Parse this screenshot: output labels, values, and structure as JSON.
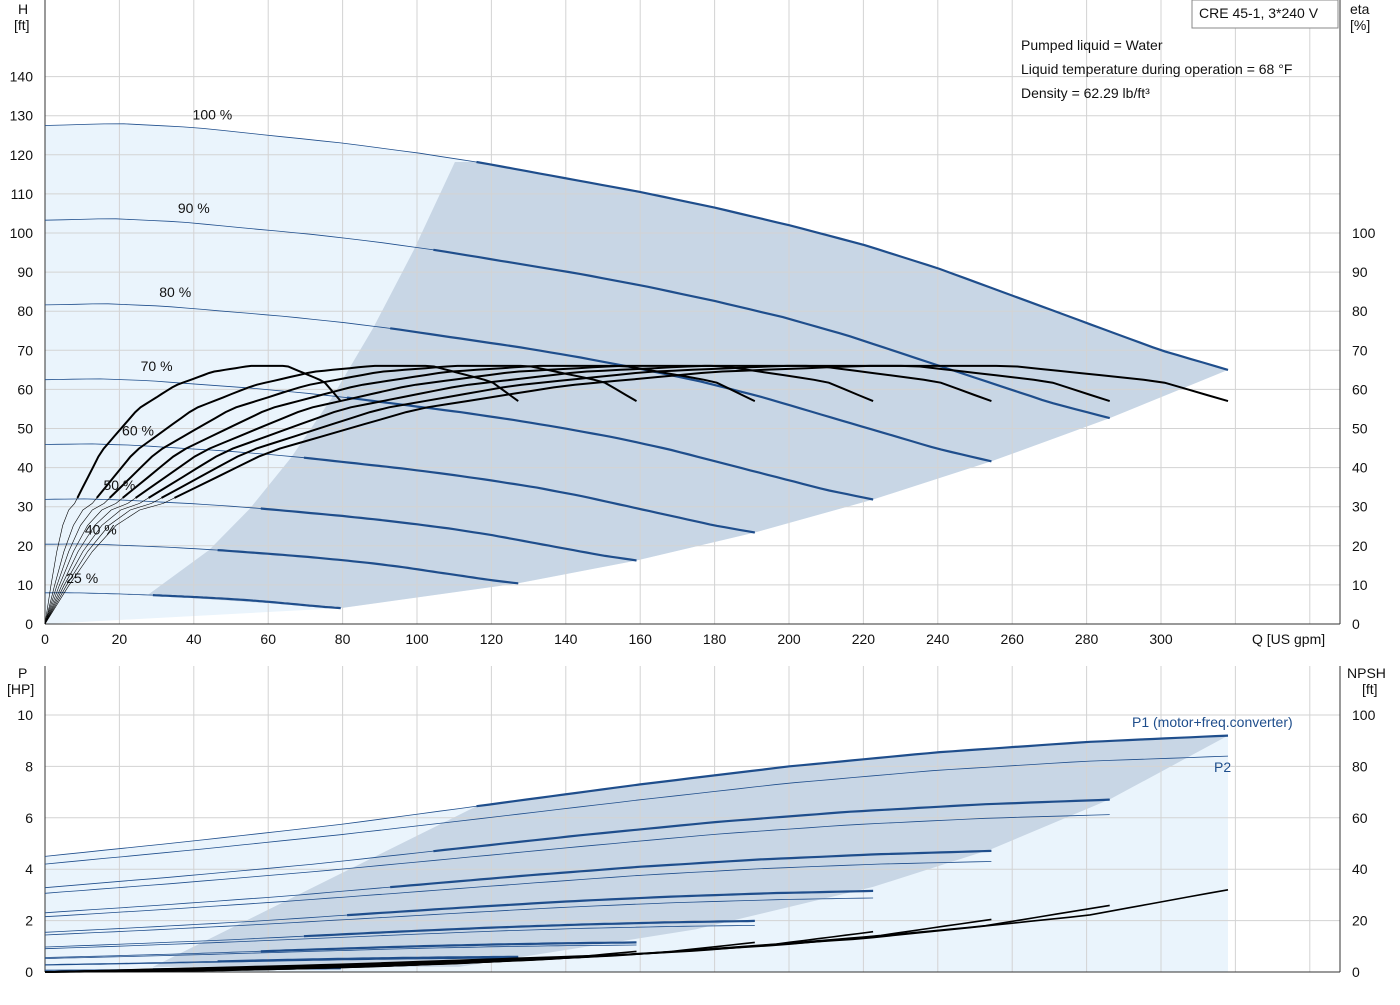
{
  "colors": {
    "curve_blue": "#1f4e8c",
    "fill_light": "#eaf4fc",
    "fill_dark": "#c8d6e5",
    "grid": "#d3d3d3",
    "eta_black": "#000000"
  },
  "title_box": "CRE 45-1, 3*240 V",
  "info_lines": [
    "Pumped liquid = Water",
    "Liquid temperature during operation = 68 °F",
    "Density = 62.29 lb/ft³"
  ],
  "chart_data": [
    {
      "type": "line",
      "name": "head",
      "y_axis_title": "H",
      "y_axis_unit": "[ft]",
      "y2_axis_title": "eta",
      "y2_axis_unit": "[%]",
      "x_axis_label": "Q [US gpm]",
      "xlim": [
        0,
        340
      ],
      "ylim": [
        0,
        150
      ],
      "x_ticks": [
        0,
        20,
        40,
        60,
        80,
        100,
        120,
        140,
        160,
        180,
        200,
        220,
        240,
        260,
        280,
        300
      ],
      "y_ticks": [
        0,
        10,
        20,
        30,
        40,
        50,
        60,
        70,
        80,
        90,
        100,
        110,
        120,
        130,
        140
      ],
      "y2_ticks": [
        0,
        10,
        20,
        30,
        40,
        50,
        60,
        70,
        80,
        90,
        100
      ],
      "grid": true,
      "speed_labels": [
        "100 %",
        "90 %",
        "80 %",
        "70 %",
        "60 %",
        "50 %",
        "40 %",
        "25 %"
      ],
      "speeds": [
        1.0,
        0.9,
        0.8,
        0.7,
        0.6,
        0.5,
        0.4,
        0.25
      ],
      "head_curve_100": {
        "q": [
          0,
          20,
          40,
          60,
          80,
          100,
          117,
          140,
          160,
          180,
          200,
          220,
          240,
          260,
          280,
          300,
          318
        ],
        "h": [
          127.5,
          128,
          127,
          125,
          123,
          120.5,
          118,
          114,
          110.5,
          106.5,
          102,
          97,
          91,
          84,
          77,
          70,
          65
        ]
      },
      "operating_region_q_max_100": 318,
      "operating_region_q_min_100": 116,
      "eta_curve_100": {
        "q": [
          30,
          60,
          100,
          140,
          180,
          220,
          260,
          300,
          318
        ],
        "eta": [
          30,
          44,
          55,
          61,
          64.5,
          66,
          66,
          62,
          57
        ]
      }
    },
    {
      "type": "line",
      "name": "power_npsh",
      "y_axis_title": "P",
      "y_axis_unit": "[HP]",
      "y2_axis_title": "NPSH",
      "y2_axis_unit": "[ft]",
      "xlim": [
        0,
        340
      ],
      "ylim": [
        0,
        11
      ],
      "y_ticks": [
        0,
        2,
        4,
        6,
        8,
        10
      ],
      "y2_ticks": [
        0,
        20,
        40,
        60,
        80,
        100
      ],
      "grid": true,
      "series_labels": [
        "P1 (motor+freq.converter)",
        "P2"
      ],
      "p1_curve_100": {
        "q": [
          0,
          40,
          80,
          116,
          160,
          200,
          240,
          280,
          318
        ],
        "p": [
          4.5,
          5.1,
          5.75,
          6.45,
          7.3,
          8.0,
          8.55,
          8.95,
          9.2
        ]
      },
      "p2_curve_100": {
        "q": [
          0,
          40,
          80,
          116,
          160,
          200,
          240,
          280,
          318
        ],
        "p": [
          4.2,
          4.75,
          5.35,
          5.95,
          6.7,
          7.35,
          7.85,
          8.2,
          8.4
        ]
      },
      "npsh_curve_100": {
        "q": [
          0,
          80,
          160,
          220,
          280,
          318
        ],
        "npsh": [
          0,
          3,
          7,
          13,
          22,
          32
        ]
      }
    }
  ]
}
